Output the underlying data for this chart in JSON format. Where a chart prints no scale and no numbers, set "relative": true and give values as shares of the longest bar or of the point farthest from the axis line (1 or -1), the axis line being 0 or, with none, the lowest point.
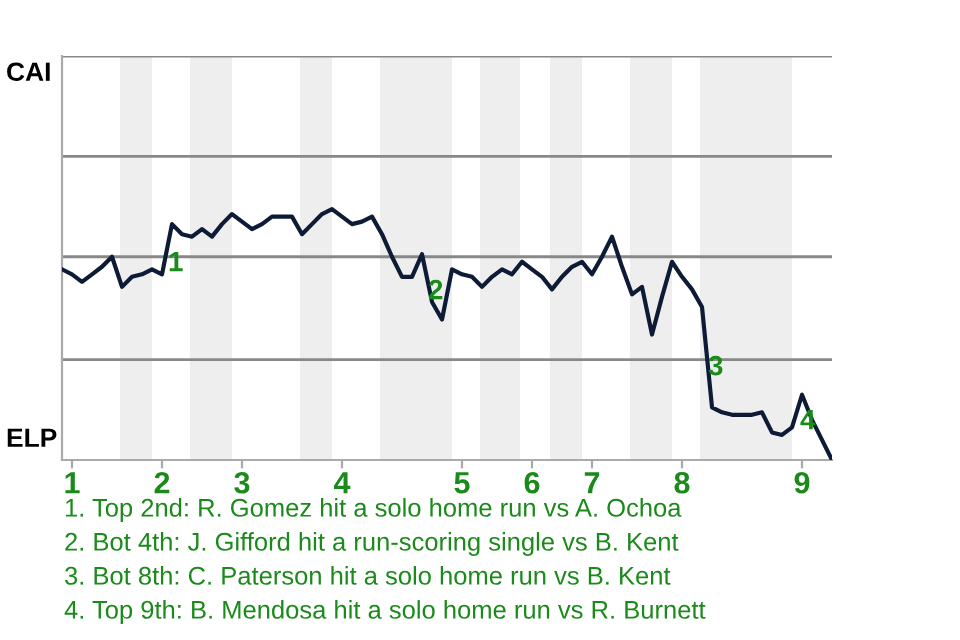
{
  "chart_data": {
    "type": "line",
    "relative": true,
    "categories": [
      null,
      "1",
      null,
      null,
      null,
      null,
      null,
      null,
      null,
      null,
      "2",
      null,
      null,
      null,
      null,
      null,
      null,
      null,
      "3",
      null,
      null,
      null,
      null,
      null,
      null,
      null,
      null,
      null,
      "4",
      null,
      null,
      null,
      null,
      null,
      null,
      null,
      null,
      null,
      null,
      null,
      "5",
      null,
      null,
      null,
      null,
      null,
      null,
      "6",
      null,
      null,
      null,
      null,
      null,
      "7",
      null,
      null,
      null,
      null,
      null,
      null,
      null,
      null,
      "8",
      null,
      null,
      null,
      null,
      null,
      null,
      null,
      null,
      null,
      null,
      null,
      "9",
      null,
      null,
      null
    ],
    "marker": "none",
    "line_style": "solid",
    "ref_lines": [
      {
        "axis": "y",
        "value": 0.4,
        "color": "#888888"
      },
      {
        "axis": "y",
        "value": 0.81,
        "color": "#888888"
      },
      {
        "axis": "y",
        "value": 1.21,
        "color": "#888888"
      },
      {
        "axis": "y",
        "value": 1.61,
        "color": "#888888"
      }
    ],
    "series": [
      {
        "color": "#0d1b36",
        "values": [
          0.76,
          0.74,
          0.71,
          0.74,
          0.77,
          0.81,
          0.69,
          0.73,
          0.74,
          0.76,
          0.74,
          0.94,
          0.9,
          0.89,
          0.92,
          0.89,
          0.94,
          0.98,
          0.95,
          0.92,
          0.94,
          0.97,
          0.97,
          0.97,
          0.9,
          0.94,
          0.98,
          1,
          0.97,
          0.94,
          0.95,
          0.97,
          0.9,
          0.81,
          0.73,
          0.73,
          0.82,
          0.63,
          0.56,
          0.76,
          0.74,
          0.73,
          0.69,
          0.73,
          0.76,
          0.74,
          0.79,
          0.76,
          0.73,
          0.68,
          0.73,
          0.77,
          0.79,
          0.74,
          0.81,
          0.89,
          0.77,
          0.66,
          0.69,
          0.5,
          0.65,
          0.79,
          0.73,
          0.68,
          0.61,
          0.21,
          0.19,
          0.18,
          0.18,
          0.18,
          0.19,
          0.11,
          0.1,
          0.13,
          0.26,
          0.16,
          0.08,
          0
        ]
      }
    ],
    "annotations": [
      "CAI",
      "ELP",
      "1",
      "2",
      "3",
      "4",
      "1. Top 2nd: R. Gomez hit a solo home run vs A. Ochoa",
      "2. Bot 4th: J. Gifford hit a run-scoring single vs B. Kent",
      "3. Bot 8th: C. Paterson hit a solo home run vs B. Kent",
      "4. Top 9th: B. Mendosa hit a solo home run vs R. Burnett"
    ]
  }
}
